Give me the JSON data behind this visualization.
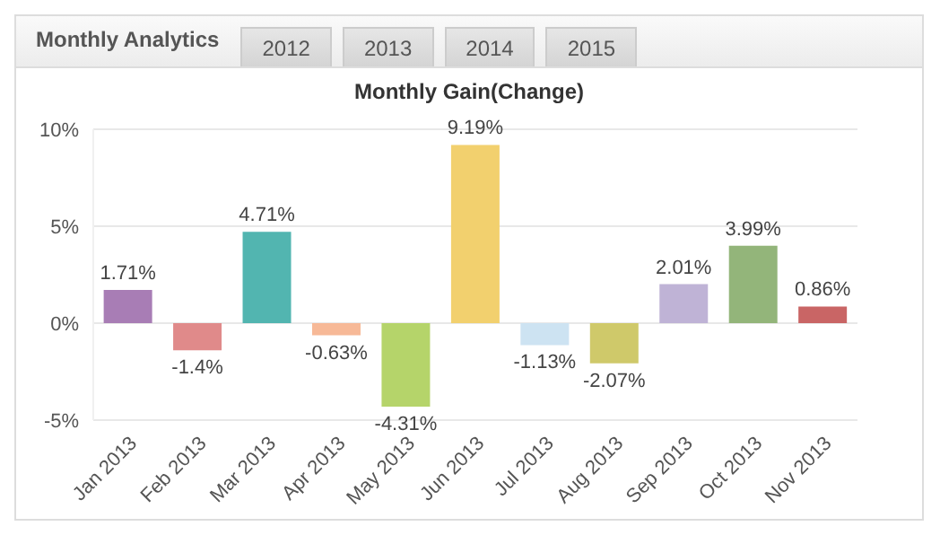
{
  "chart_data": {
    "type": "bar",
    "title": "Monthly Analytics",
    "subtitle": "Monthly Gain(Change)",
    "annotations": [
      "2012",
      "2013",
      "2014",
      "2015"
    ],
    "categories": [
      "Jan 2013",
      "Feb 2013",
      "Mar 2013",
      "Apr 2013",
      "May 2013",
      "Jun 2013",
      "Jul 2013",
      "Aug 2013",
      "Sep 2013",
      "Oct 2013",
      "Nov 2013"
    ],
    "values": [
      1.71,
      -1.4,
      4.71,
      -0.63,
      -4.31,
      9.19,
      -1.13,
      -2.07,
      2.01,
      3.99,
      0.86
    ],
    "value_labels": [
      "1.71%",
      "-1.4%",
      "4.71%",
      "-0.63%",
      "-4.31%",
      "9.19%",
      "-1.13%",
      "-2.07%",
      "2.01%",
      "3.99%",
      "0.86%"
    ],
    "colors": [
      "#a87db5",
      "#e08a8a",
      "#52b5b0",
      "#f7b997",
      "#b5d46a",
      "#f2d06e",
      "#cde3f2",
      "#cfc96a",
      "#bfb3d6",
      "#93b57a",
      "#c96565"
    ],
    "ylim": [
      -5,
      10
    ],
    "yticks": [
      {
        "value": -5,
        "label": "-5%"
      },
      {
        "value": 0,
        "label": "0%"
      },
      {
        "value": 5,
        "label": "5%"
      },
      {
        "value": 10,
        "label": "10%"
      }
    ],
    "grid": "y",
    "legend": false
  }
}
